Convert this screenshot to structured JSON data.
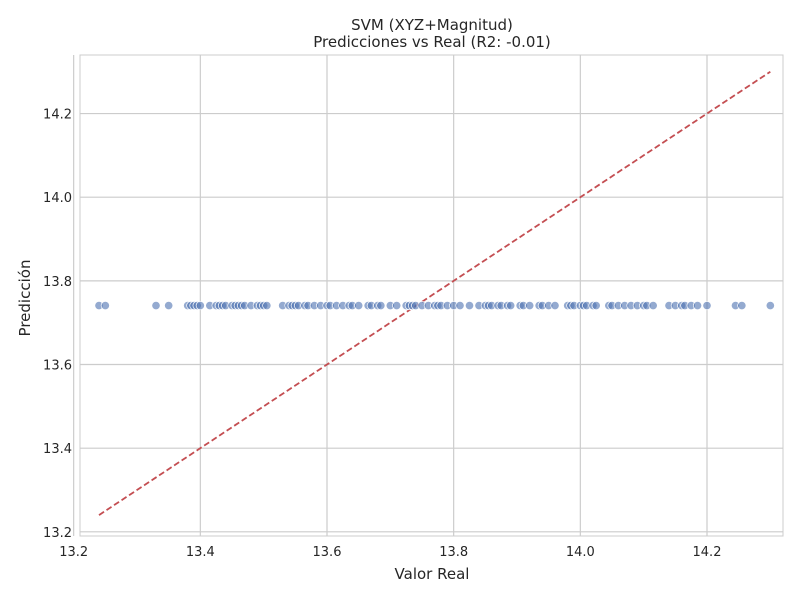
{
  "chart_data": {
    "type": "scatter",
    "title": "SVM (XYZ+Magnitud)",
    "subtitle": "Predicciones vs Real (R2: -0.01)",
    "xlabel": "Valor Real",
    "ylabel": "Predicción",
    "xlim": [
      13.21,
      14.32
    ],
    "ylim": [
      13.19,
      14.34
    ],
    "x_ticks": [
      13.2,
      13.4,
      13.6,
      13.8,
      14.0,
      14.2
    ],
    "x_tick_labels": [
      "13.2",
      "13.4",
      "13.6",
      "13.8",
      "14.0",
      "14.2"
    ],
    "y_ticks": [
      13.2,
      13.4,
      13.6,
      13.8,
      14.0,
      14.2
    ],
    "y_tick_labels": [
      "13.2",
      "13.4",
      "13.6",
      "13.8",
      "14.0",
      "14.2"
    ],
    "grid": true,
    "reference_line": {
      "x": [
        13.24,
        14.3
      ],
      "y": [
        13.24,
        14.3
      ],
      "color": "#c44e52",
      "style": "dashed"
    },
    "point_color": "#4c72b0",
    "points": [
      {
        "x": 13.24,
        "y": 13.741
      },
      {
        "x": 13.25,
        "y": 13.741
      },
      {
        "x": 13.33,
        "y": 13.741
      },
      {
        "x": 13.35,
        "y": 13.741
      },
      {
        "x": 13.38,
        "y": 13.741
      },
      {
        "x": 13.385,
        "y": 13.741
      },
      {
        "x": 13.39,
        "y": 13.741
      },
      {
        "x": 13.395,
        "y": 13.741
      },
      {
        "x": 13.4,
        "y": 13.741
      },
      {
        "x": 13.415,
        "y": 13.741
      },
      {
        "x": 13.425,
        "y": 13.741
      },
      {
        "x": 13.43,
        "y": 13.741
      },
      {
        "x": 13.435,
        "y": 13.741
      },
      {
        "x": 13.44,
        "y": 13.741
      },
      {
        "x": 13.45,
        "y": 13.741
      },
      {
        "x": 13.455,
        "y": 13.741
      },
      {
        "x": 13.46,
        "y": 13.741
      },
      {
        "x": 13.465,
        "y": 13.741
      },
      {
        "x": 13.47,
        "y": 13.741
      },
      {
        "x": 13.48,
        "y": 13.741
      },
      {
        "x": 13.49,
        "y": 13.741
      },
      {
        "x": 13.495,
        "y": 13.741
      },
      {
        "x": 13.5,
        "y": 13.741
      },
      {
        "x": 13.505,
        "y": 13.741
      },
      {
        "x": 13.53,
        "y": 13.741
      },
      {
        "x": 13.54,
        "y": 13.741
      },
      {
        "x": 13.545,
        "y": 13.741
      },
      {
        "x": 13.55,
        "y": 13.741
      },
      {
        "x": 13.555,
        "y": 13.741
      },
      {
        "x": 13.565,
        "y": 13.741
      },
      {
        "x": 13.57,
        "y": 13.741
      },
      {
        "x": 13.58,
        "y": 13.741
      },
      {
        "x": 13.59,
        "y": 13.741
      },
      {
        "x": 13.6,
        "y": 13.741
      },
      {
        "x": 13.605,
        "y": 13.741
      },
      {
        "x": 13.615,
        "y": 13.741
      },
      {
        "x": 13.625,
        "y": 13.741
      },
      {
        "x": 13.635,
        "y": 13.741
      },
      {
        "x": 13.64,
        "y": 13.741
      },
      {
        "x": 13.65,
        "y": 13.741
      },
      {
        "x": 13.665,
        "y": 13.741
      },
      {
        "x": 13.67,
        "y": 13.741
      },
      {
        "x": 13.68,
        "y": 13.741
      },
      {
        "x": 13.685,
        "y": 13.741
      },
      {
        "x": 13.7,
        "y": 13.741
      },
      {
        "x": 13.71,
        "y": 13.741
      },
      {
        "x": 13.725,
        "y": 13.741
      },
      {
        "x": 13.73,
        "y": 13.741
      },
      {
        "x": 13.735,
        "y": 13.741
      },
      {
        "x": 13.74,
        "y": 13.741
      },
      {
        "x": 13.75,
        "y": 13.741
      },
      {
        "x": 13.76,
        "y": 13.741
      },
      {
        "x": 13.77,
        "y": 13.741
      },
      {
        "x": 13.775,
        "y": 13.741
      },
      {
        "x": 13.78,
        "y": 13.741
      },
      {
        "x": 13.79,
        "y": 13.741
      },
      {
        "x": 13.8,
        "y": 13.741
      },
      {
        "x": 13.81,
        "y": 13.741
      },
      {
        "x": 13.825,
        "y": 13.741
      },
      {
        "x": 13.84,
        "y": 13.741
      },
      {
        "x": 13.85,
        "y": 13.741
      },
      {
        "x": 13.855,
        "y": 13.741
      },
      {
        "x": 13.86,
        "y": 13.741
      },
      {
        "x": 13.87,
        "y": 13.741
      },
      {
        "x": 13.875,
        "y": 13.741
      },
      {
        "x": 13.885,
        "y": 13.741
      },
      {
        "x": 13.89,
        "y": 13.741
      },
      {
        "x": 13.905,
        "y": 13.741
      },
      {
        "x": 13.91,
        "y": 13.741
      },
      {
        "x": 13.92,
        "y": 13.741
      },
      {
        "x": 13.935,
        "y": 13.741
      },
      {
        "x": 13.94,
        "y": 13.741
      },
      {
        "x": 13.95,
        "y": 13.741
      },
      {
        "x": 13.96,
        "y": 13.741
      },
      {
        "x": 13.98,
        "y": 13.741
      },
      {
        "x": 13.985,
        "y": 13.741
      },
      {
        "x": 13.99,
        "y": 13.741
      },
      {
        "x": 14.0,
        "y": 13.741
      },
      {
        "x": 14.005,
        "y": 13.741
      },
      {
        "x": 14.01,
        "y": 13.741
      },
      {
        "x": 14.02,
        "y": 13.741
      },
      {
        "x": 14.025,
        "y": 13.741
      },
      {
        "x": 14.045,
        "y": 13.741
      },
      {
        "x": 14.05,
        "y": 13.741
      },
      {
        "x": 14.06,
        "y": 13.741
      },
      {
        "x": 14.07,
        "y": 13.741
      },
      {
        "x": 14.08,
        "y": 13.741
      },
      {
        "x": 14.09,
        "y": 13.741
      },
      {
        "x": 14.1,
        "y": 13.741
      },
      {
        "x": 14.105,
        "y": 13.741
      },
      {
        "x": 14.115,
        "y": 13.741
      },
      {
        "x": 14.14,
        "y": 13.741
      },
      {
        "x": 14.15,
        "y": 13.741
      },
      {
        "x": 14.16,
        "y": 13.741
      },
      {
        "x": 14.165,
        "y": 13.741
      },
      {
        "x": 14.175,
        "y": 13.741
      },
      {
        "x": 14.185,
        "y": 13.741
      },
      {
        "x": 14.2,
        "y": 13.741
      },
      {
        "x": 14.245,
        "y": 13.741
      },
      {
        "x": 14.255,
        "y": 13.741
      },
      {
        "x": 14.3,
        "y": 13.741
      }
    ]
  }
}
